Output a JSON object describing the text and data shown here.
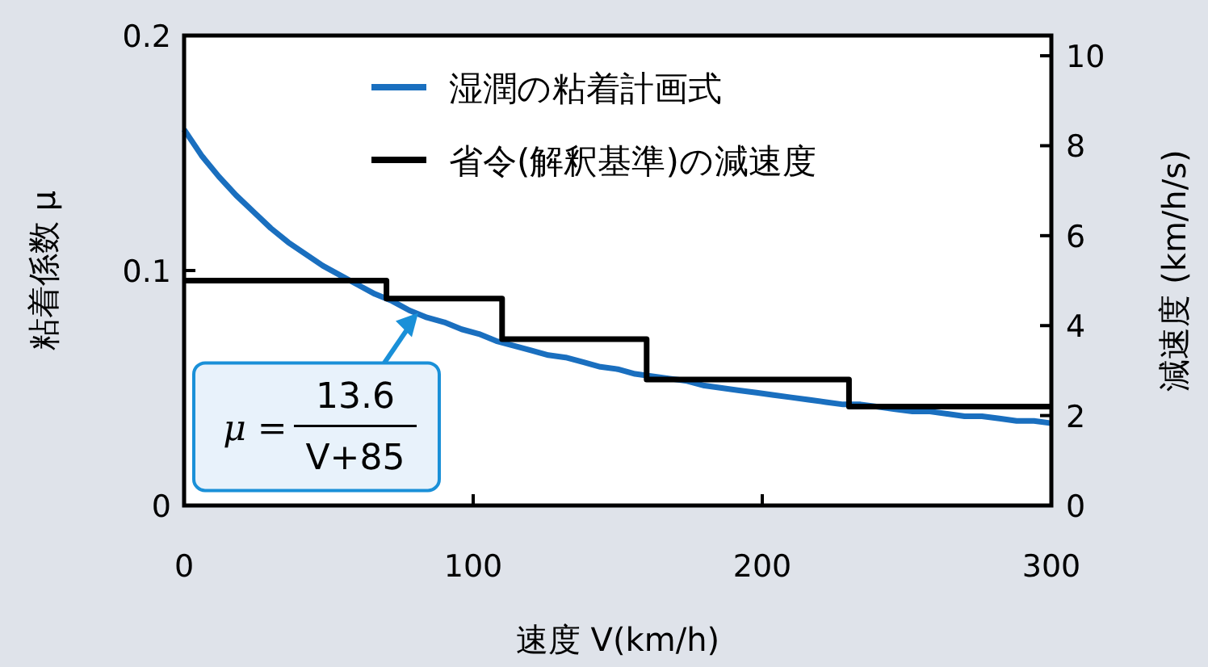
{
  "chart_data": {
    "type": "line",
    "xlabel": "速度 V(km/h)",
    "ylabel": "粘着係数 μ",
    "y2label": "減速度 (km/h/s)",
    "xlim": [
      0,
      300
    ],
    "xticks": [
      0,
      100,
      200,
      300
    ],
    "ylim": [
      0,
      0.2
    ],
    "yticks": [
      0,
      0.1,
      0.2
    ],
    "y2lim": [
      0,
      10.45
    ],
    "y2ticks": [
      0,
      2,
      4,
      6,
      8,
      10
    ],
    "legend": "top",
    "grid": false,
    "marker": "none",
    "line_style": "solid",
    "series": [
      {
        "name": "湿潤の粘着計画式",
        "color": "#1a6fbf",
        "x": [
          0,
          6,
          12,
          18,
          24,
          30,
          36,
          42,
          48,
          54,
          60,
          66,
          72,
          78,
          84,
          90,
          96,
          102,
          108,
          114,
          120,
          126,
          132,
          138,
          144,
          150,
          156,
          162,
          168,
          174,
          180,
          186,
          192,
          198,
          204,
          210,
          216,
          222,
          228,
          234,
          240,
          246,
          252,
          258,
          264,
          270,
          276,
          282,
          288,
          294,
          300
        ],
        "values": [
          0.16,
          0.149,
          0.14,
          0.132,
          0.125,
          0.118,
          0.112,
          0.107,
          0.102,
          0.098,
          0.094,
          0.09,
          0.087,
          0.083,
          0.08,
          0.078,
          0.075,
          0.073,
          0.07,
          0.068,
          0.066,
          0.064,
          0.063,
          0.061,
          0.059,
          0.058,
          0.056,
          0.055,
          0.054,
          0.053,
          0.051,
          0.05,
          0.049,
          0.048,
          0.047,
          0.046,
          0.045,
          0.044,
          0.043,
          0.043,
          0.042,
          0.041,
          0.04,
          0.04,
          0.039,
          0.038,
          0.038,
          0.037,
          0.036,
          0.036,
          0.035
        ]
      },
      {
        "name": "省令(解釈基準)の減速度",
        "type": "step",
        "axis": "y2",
        "color": "#000000",
        "x": [
          0,
          70,
          110,
          160,
          230,
          300
        ],
        "values": [
          5.0,
          4.6,
          3.7,
          2.8,
          2.2,
          2.2
        ]
      }
    ],
    "annotations": [
      {
        "text": "μ = 13.6 V+85",
        "x": 81,
        "y": 0.082
      }
    ]
  }
}
